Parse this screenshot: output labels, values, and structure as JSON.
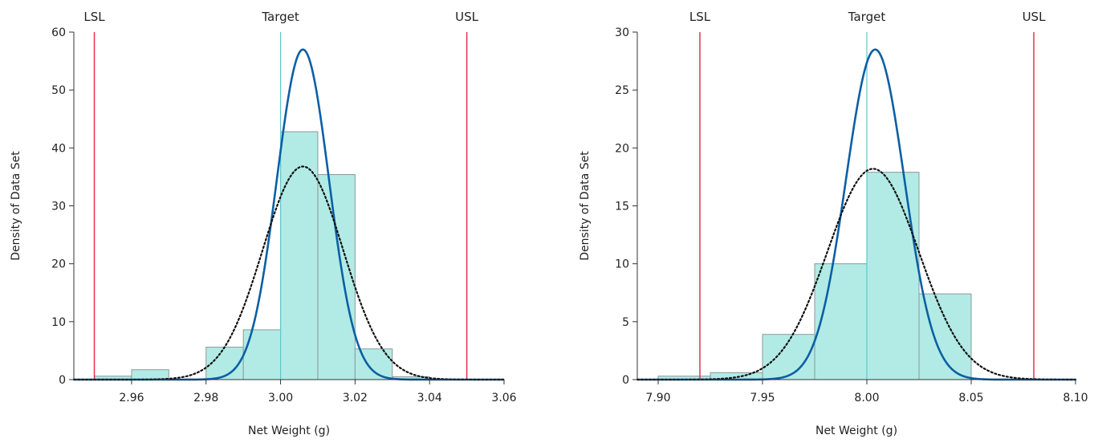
{
  "chart_data": [
    {
      "type": "histogram",
      "xlabel": "Net Weight (g)",
      "ylabel": "Density of Data Set",
      "xlim": [
        2.9445,
        3.06
      ],
      "ylim": [
        0,
        60
      ],
      "xticks": [
        "2.96",
        "2.98",
        "3.00",
        "3.02",
        "3.04",
        "3.06"
      ],
      "xtick_values": [
        2.96,
        2.98,
        3.0,
        3.02,
        3.04,
        3.06
      ],
      "yticks": [
        "0",
        "10",
        "20",
        "30",
        "40",
        "50",
        "60"
      ],
      "ytick_values": [
        0,
        10,
        20,
        30,
        40,
        50,
        60
      ],
      "bins": [
        {
          "x0": 2.95,
          "x1": 2.96,
          "density": 0.6
        },
        {
          "x0": 2.96,
          "x1": 2.97,
          "density": 1.7
        },
        {
          "x0": 2.98,
          "x1": 2.99,
          "density": 5.6
        },
        {
          "x0": 2.99,
          "x1": 3.0,
          "density": 8.6
        },
        {
          "x0": 3.0,
          "x1": 3.01,
          "density": 42.8
        },
        {
          "x0": 3.01,
          "x1": 3.02,
          "density": 35.4
        },
        {
          "x0": 3.02,
          "x1": 3.03,
          "density": 5.3
        },
        {
          "x0": 3.03,
          "x1": 3.04,
          "density": 0.5
        }
      ],
      "spec_lines": [
        {
          "label": "LSL",
          "value": 2.95,
          "color": "#e0334d"
        },
        {
          "label": "Target",
          "value": 3.0,
          "color": "#5bc8cf"
        },
        {
          "label": "USL",
          "value": 3.05,
          "color": "#e0334d"
        }
      ],
      "curves": [
        {
          "style": "solid",
          "color": "#0b5fa5",
          "mean": 3.006,
          "peak": 57.0
        },
        {
          "style": "dotted",
          "color": "#111111",
          "mean": 3.006,
          "peak": 36.8
        }
      ]
    },
    {
      "type": "histogram",
      "xlabel": "Net Weight (g)",
      "ylabel": "Density of Data Set",
      "xlim": [
        7.89,
        8.1
      ],
      "ylim": [
        0,
        30
      ],
      "xticks": [
        "7.90",
        "7.95",
        "8.00",
        "8.05",
        "8.10"
      ],
      "xtick_values": [
        7.9,
        7.95,
        8.0,
        8.05,
        8.1
      ],
      "yticks": [
        "0",
        "5",
        "10",
        "15",
        "20",
        "25",
        "30"
      ],
      "ytick_values": [
        0,
        5,
        10,
        15,
        20,
        25,
        30
      ],
      "bins": [
        {
          "x0": 7.9,
          "x1": 7.925,
          "density": 0.3
        },
        {
          "x0": 7.925,
          "x1": 7.95,
          "density": 0.6
        },
        {
          "x0": 7.95,
          "x1": 7.975,
          "density": 3.9
        },
        {
          "x0": 7.975,
          "x1": 8.0,
          "density": 10.0
        },
        {
          "x0": 8.0,
          "x1": 8.025,
          "density": 17.9
        },
        {
          "x0": 8.025,
          "x1": 8.05,
          "density": 7.4
        }
      ],
      "spec_lines": [
        {
          "label": "LSL",
          "value": 7.92,
          "color": "#e0334d"
        },
        {
          "label": "Target",
          "value": 8.0,
          "color": "#5bc8cf"
        },
        {
          "label": "USL",
          "value": 8.08,
          "color": "#e0334d"
        }
      ],
      "curves": [
        {
          "style": "solid",
          "color": "#0b5fa5",
          "mean": 8.004,
          "peak": 28.5
        },
        {
          "style": "dotted",
          "color": "#111111",
          "mean": 8.003,
          "peak": 18.2
        }
      ]
    }
  ],
  "colors": {
    "bar_fill": "#b2ebe5",
    "bar_stroke": "#8a9a98",
    "axis": "#333333"
  }
}
